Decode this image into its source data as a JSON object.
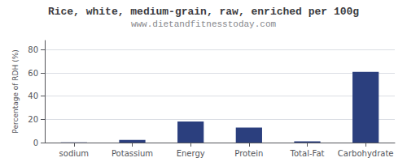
{
  "chart_data": {
    "type": "bar",
    "title": "Rice, white, medium-grain, raw, enriched per 100g",
    "subtitle": "www.dietandfitnesstoday.com",
    "categories": [
      "sodium",
      "Potassium",
      "Energy",
      "Protein",
      "Total-Fat",
      "Carbohydrate"
    ],
    "values": [
      0.1,
      2.2,
      18.2,
      13.0,
      1.0,
      61.0
    ],
    "color": "#2b3f7e",
    "ylabel": "Percentage of RDH (%)",
    "ylim": [
      0,
      88
    ],
    "yticks": [
      0,
      20,
      40,
      60,
      80
    ],
    "grid": true
  }
}
